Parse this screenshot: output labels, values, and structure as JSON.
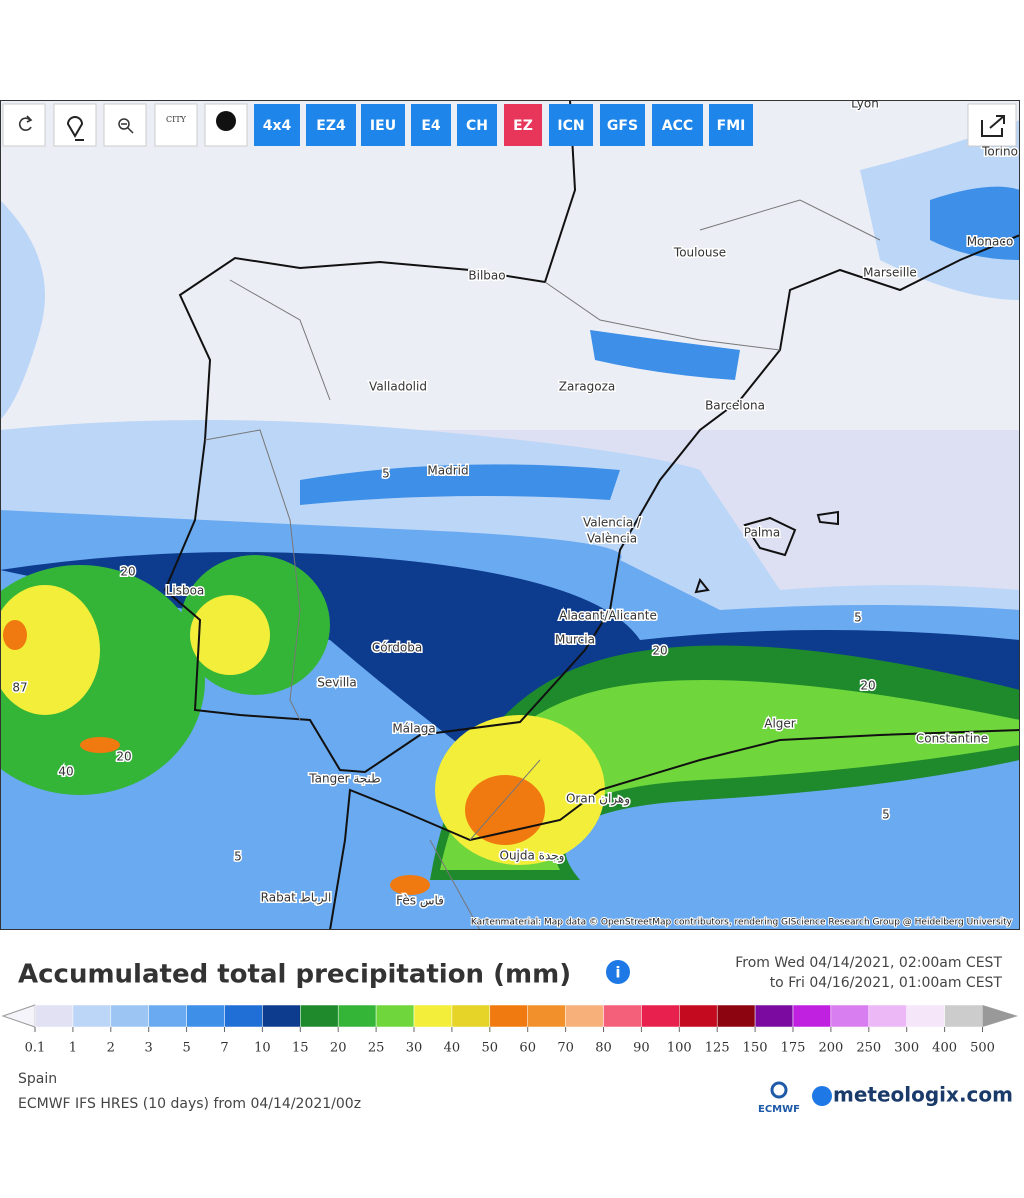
{
  "toolbar": {
    "icon_city": "CITY",
    "buttons": [
      "4x4",
      "EZ4",
      "IEU",
      "E4",
      "CH",
      "EZ",
      "ICN",
      "GFS",
      "ACC",
      "FMI"
    ],
    "active_index": 5
  },
  "map": {
    "labels": [
      "Lyon",
      "Torino",
      "Monaco",
      "Toulouse",
      "Marseille",
      "Bilbao",
      "Valladolid",
      "Zaragoza",
      "Barcelona",
      "Madrid",
      "Valencia /",
      "València",
      "Palma",
      "Lisboa",
      "Alacant/Alicante",
      "Murcia",
      "Córdoba",
      "Sevilla",
      "Alger",
      "Málaga",
      "Constantine",
      "Tanger طنجة",
      "Oran وهران",
      "Oujda وجدة",
      "Rabat الرباط",
      "Fès فاس",
      "87",
      "20",
      "40",
      "20",
      "5",
      "5",
      "20",
      "20",
      "5",
      "5"
    ],
    "attribution": "Kartenmaterial: Map data © OpenStreetMap contributors, rendering GIScience Research Group @ Heidelberg University"
  },
  "legend": {
    "title": "Accumulated total precipitation (mm)",
    "date_from": "From Wed 04/14/2021, 02:00am CEST",
    "date_to": "to Fri 04/16/2021, 01:00am CEST",
    "ticks": [
      0.1,
      1,
      2,
      3,
      5,
      7,
      10,
      15,
      20,
      25,
      30,
      40,
      50,
      60,
      70,
      80,
      90,
      100,
      125,
      150,
      175,
      200,
      250,
      300,
      400,
      500
    ],
    "colors": [
      "#f4f4fa",
      "#e1e1f3",
      "#bcd6f7",
      "#9cc5f4",
      "#6aaaf0",
      "#3d8fe8",
      "#1f6fd6",
      "#0d3b8e",
      "#1e8a2c",
      "#34b538",
      "#6fd63c",
      "#f2ee3a",
      "#e6d528",
      "#f07a10",
      "#f2902c",
      "#f8b07a",
      "#f4607a",
      "#e8204e",
      "#c40a1e",
      "#8c0410",
      "#7a0aa0",
      "#c020e0",
      "#d87ef0",
      "#ecb8f6",
      "#f6e6fa",
      "#cccccc",
      "#999999"
    ],
    "region": "Spain",
    "source": "ECMWF IFS HRES (10 days) from 04/14/2021/00z"
  },
  "brand": {
    "ecmwf": "ECMWF",
    "site": "meteologix.com"
  }
}
